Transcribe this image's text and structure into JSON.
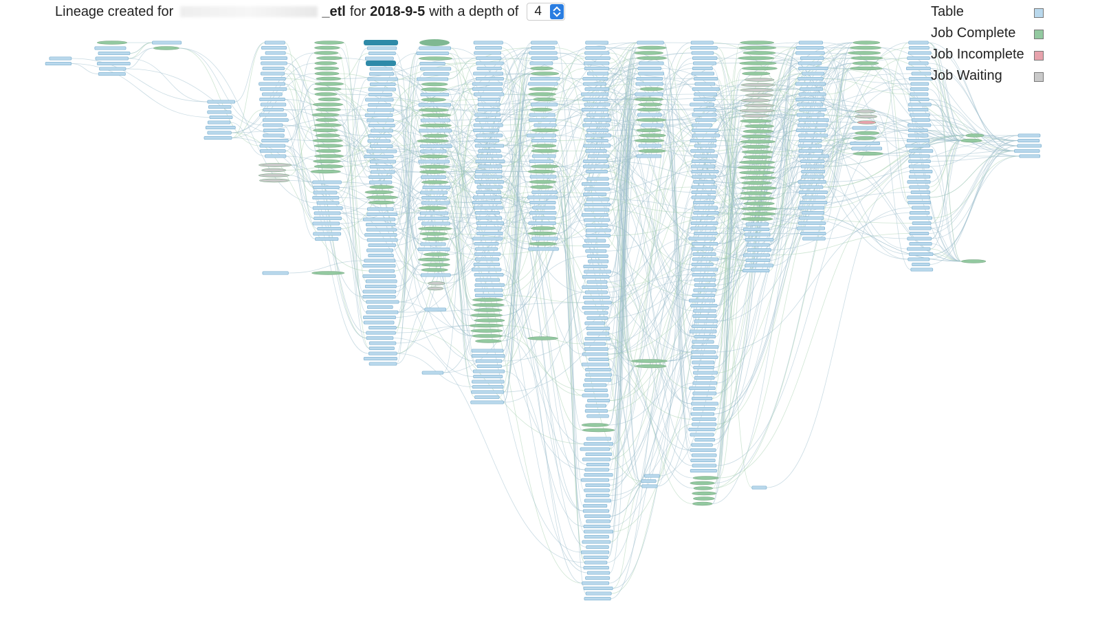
{
  "header": {
    "prefix": "Lineage created for",
    "job_name": "_etl",
    "middle": "for",
    "date": "2018-9-5",
    "depth_label": "with a depth of",
    "depth": "4"
  },
  "legend": [
    {
      "label": "Table",
      "color": "#b9d8ec"
    },
    {
      "label": "Job Complete",
      "color": "#93c9a0"
    },
    {
      "label": "Job Incomplete",
      "color": "#e7a2ac"
    },
    {
      "label": "Job Waiting",
      "color": "#c9c9c9"
    }
  ]
}
